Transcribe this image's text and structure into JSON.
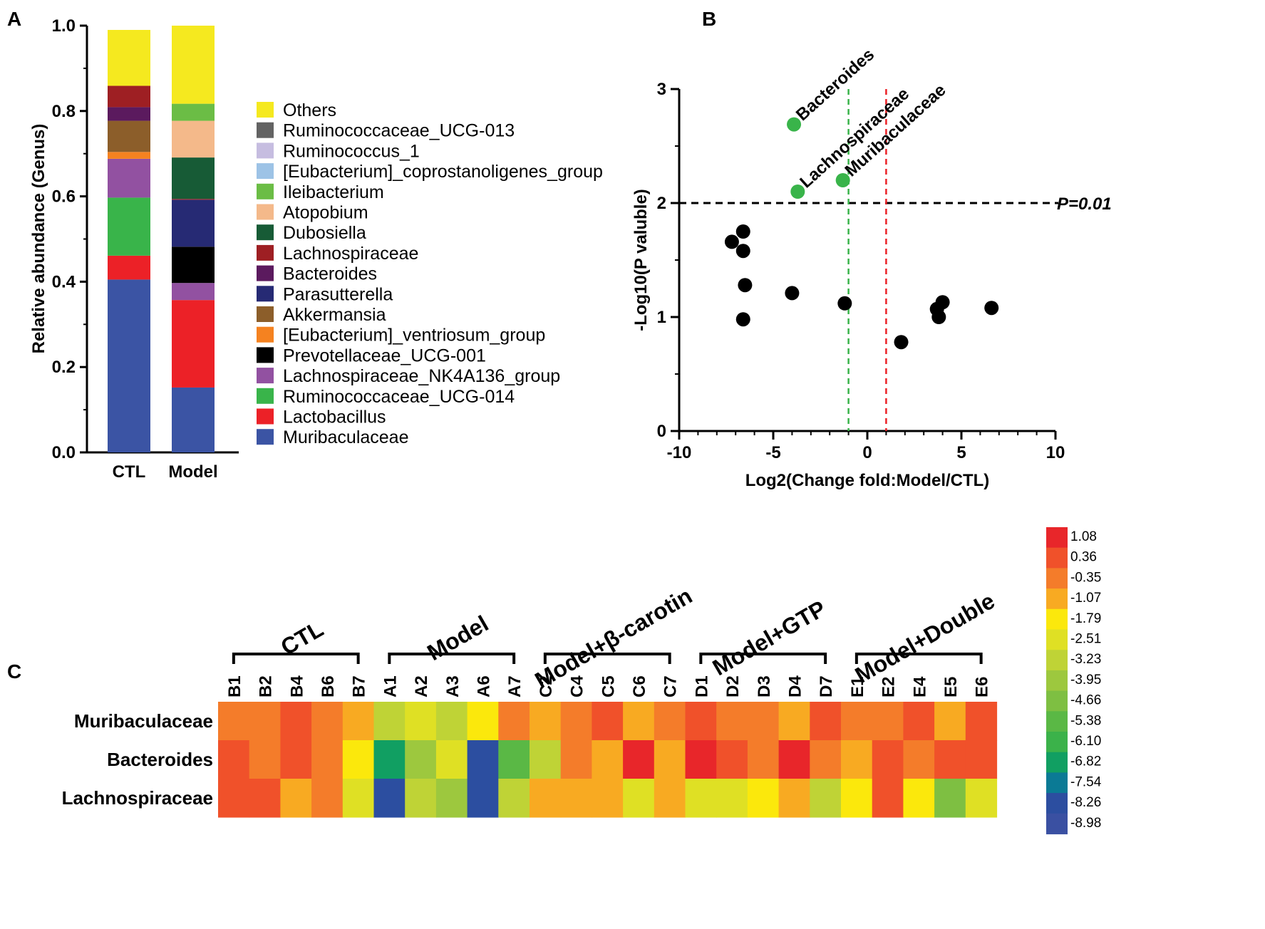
{
  "panels": {
    "a": "A",
    "b": "B",
    "c": "C"
  },
  "chart_data": [
    {
      "type": "bar",
      "stacked": true,
      "panel": "A",
      "ylabel": "Relative abundance (Genus)",
      "xlabel": "",
      "ylim": [
        0,
        1
      ],
      "yticks": [
        "0.0",
        "0.2",
        "0.4",
        "0.6",
        "0.8",
        "1.0"
      ],
      "categories": [
        "CTL",
        "Model"
      ],
      "legend": "right",
      "series": [
        {
          "name": "Muribaculaceae",
          "color": "#3b54a4",
          "values": [
            0.405,
            0.152
          ]
        },
        {
          "name": "Lactobacillus",
          "color": "#ec2127",
          "values": [
            0.056,
            0.205
          ]
        },
        {
          "name": "Ruminococcaceae_UCG-014",
          "color": "#39b44a",
          "values": [
            0.136,
            0.0
          ]
        },
        {
          "name": "Lachnospiraceae_NK4A136_group",
          "color": "#9251a1",
          "values": [
            0.091,
            0.04
          ]
        },
        {
          "name": "Prevotellaceae_UCG-001",
          "color": "#000000",
          "values": [
            0.0,
            0.085
          ]
        },
        {
          "name": "[Eubacterium]_ventriosum_group",
          "color": "#f58220",
          "values": [
            0.016,
            0.0
          ]
        },
        {
          "name": "Akkermansia",
          "color": "#8c5e2a",
          "values": [
            0.073,
            0.0
          ]
        },
        {
          "name": "Parasutterella",
          "color": "#262a74",
          "values": [
            0.0,
            0.11
          ]
        },
        {
          "name": "Bacteroides",
          "color": "#5b1a5e",
          "values": [
            0.032,
            0.0
          ]
        },
        {
          "name": "Lachnospiraceae",
          "color": "#9e1f23",
          "values": [
            0.05,
            0.002
          ]
        },
        {
          "name": "Dubosiella",
          "color": "#175b36",
          "values": [
            0.0,
            0.097
          ]
        },
        {
          "name": "Atopobium",
          "color": "#f4b98a",
          "values": [
            0.0,
            0.086
          ]
        },
        {
          "name": "Ileibacterium",
          "color": "#6bbd45",
          "values": [
            0.0,
            0.04
          ]
        },
        {
          "name": "[Eubacterium]_coprostanoligenes_group",
          "color": "#9dc3e6",
          "values": [
            0.0,
            0.0
          ]
        },
        {
          "name": "Ruminococcus_1",
          "color": "#c6bde0",
          "values": [
            0.0,
            0.0
          ]
        },
        {
          "name": "Ruminococcaceae_UCG-013",
          "color": "#636363",
          "values": [
            0.0,
            0.0
          ]
        },
        {
          "name": "Others",
          "color": "#f5e91f",
          "values": [
            0.131,
            0.183
          ]
        }
      ]
    },
    {
      "type": "scatter",
      "panel": "B",
      "xlabel": "Log2(Change fold:Model/CTL)",
      "ylabel": "-Log10(P valuble)",
      "xlim": [
        -10,
        10
      ],
      "ylim": [
        0,
        3
      ],
      "xticks": [
        "-10",
        "-5",
        "0",
        "5",
        "10"
      ],
      "yticks": [
        "0",
        "1",
        "2",
        "3"
      ],
      "threshold_label": "P=0.01",
      "threshold_y": 2,
      "vlines": [
        {
          "x": -1,
          "color": "#39b44a"
        },
        {
          "x": 1,
          "color": "#ec2127"
        }
      ],
      "significant": [
        {
          "name": "Bacteroides",
          "x": -3.9,
          "y": 2.69,
          "color": "#39b44a"
        },
        {
          "name": "Lachnospiraceae",
          "x": -3.7,
          "y": 2.1,
          "color": "#39b44a"
        },
        {
          "name": "Muribaculaceae",
          "x": -1.3,
          "y": 2.2,
          "color": "#39b44a"
        }
      ],
      "points": [
        {
          "x": -7.2,
          "y": 1.66
        },
        {
          "x": -6.6,
          "y": 1.75
        },
        {
          "x": -6.6,
          "y": 1.58
        },
        {
          "x": -6.5,
          "y": 1.28
        },
        {
          "x": -6.6,
          "y": 0.98
        },
        {
          "x": -4.0,
          "y": 1.21
        },
        {
          "x": -1.2,
          "y": 1.12
        },
        {
          "x": 1.8,
          "y": 0.78
        },
        {
          "x": 3.7,
          "y": 1.07
        },
        {
          "x": 3.8,
          "y": 1.0
        },
        {
          "x": 4.0,
          "y": 1.13
        },
        {
          "x": 6.6,
          "y": 1.08
        }
      ]
    },
    {
      "type": "heatmap",
      "panel": "C",
      "groups": [
        {
          "label": "CTL",
          "samples": [
            "B1",
            "B2",
            "B4",
            "B6",
            "B7"
          ]
        },
        {
          "label": "Model",
          "samples": [
            "A1",
            "A2",
            "A3",
            "A6",
            "A7"
          ]
        },
        {
          "label": "Model+β-carotin",
          "samples": [
            "C2",
            "C4",
            "C5",
            "C6",
            "C7"
          ]
        },
        {
          "label": "Model+GTP",
          "samples": [
            "D1",
            "D2",
            "D3",
            "D4",
            "D7"
          ]
        },
        {
          "label": "Model+Double",
          "samples": [
            "E1",
            "E2",
            "E4",
            "E5",
            "E6"
          ]
        }
      ],
      "rows": [
        "Muribaculaceae",
        "Bacteroides",
        "Lachnospiraceae"
      ],
      "values": [
        [
          -0.35,
          -0.35,
          0.36,
          -0.35,
          -1.07,
          -3.23,
          -2.51,
          -2.87,
          -1.79,
          -0.35,
          -1.07,
          -0.35,
          0.36,
          -1.07,
          -0.35,
          0.36,
          -0.35,
          -0.35,
          -1.07,
          0.36,
          -0.35,
          -0.35,
          0.36,
          -1.07,
          0.36
        ],
        [
          0.36,
          -0.35,
          0.36,
          -0.35,
          -1.79,
          -6.82,
          -3.95,
          -2.51,
          -8.26,
          -5.38,
          -3.23,
          -0.35,
          -1.07,
          1.08,
          -1.07,
          1.08,
          0.36,
          -0.35,
          1.08,
          -0.35,
          -1.07,
          0.36,
          -0.35,
          0.36,
          0.36
        ],
        [
          0.36,
          0.36,
          -1.07,
          -0.35,
          -2.51,
          -8.26,
          -3.23,
          -3.95,
          -8.26,
          -3.59,
          -1.07,
          -1.07,
          -1.07,
          -2.51,
          -1.07,
          -2.51,
          -2.51,
          -1.79,
          -1.07,
          -3.23,
          -1.79,
          0.36,
          -1.79,
          -4.66,
          -2.51
        ]
      ],
      "scale": [
        {
          "label": "1.08",
          "value": 1.08,
          "color": "#e8262a"
        },
        {
          "label": "0.36",
          "value": 0.36,
          "color": "#f0512a"
        },
        {
          "label": "-0.35",
          "value": -0.35,
          "color": "#f47c2a"
        },
        {
          "label": "-1.07",
          "value": -1.07,
          "color": "#f8aa22"
        },
        {
          "label": "-1.79",
          "value": -1.79,
          "color": "#fbe80c"
        },
        {
          "label": "-2.51",
          "value": -2.51,
          "color": "#dfe024"
        },
        {
          "label": "-3.23",
          "value": -3.23,
          "color": "#bfd336"
        },
        {
          "label": "-3.95",
          "value": -3.95,
          "color": "#9dc83e"
        },
        {
          "label": "-4.66",
          "value": -4.66,
          "color": "#7ebf42"
        },
        {
          "label": "-5.38",
          "value": -5.38,
          "color": "#5ab845"
        },
        {
          "label": "-6.10",
          "value": -6.1,
          "color": "#3bb24a"
        },
        {
          "label": "-6.82",
          "value": -6.82,
          "color": "#119f62"
        },
        {
          "label": "-7.54",
          "value": -7.54,
          "color": "#0b7a95"
        },
        {
          "label": "-8.26",
          "value": -8.26,
          "color": "#2c4ea0"
        },
        {
          "label": "-8.98",
          "value": -8.98,
          "color": "#3a50a2"
        }
      ]
    }
  ]
}
